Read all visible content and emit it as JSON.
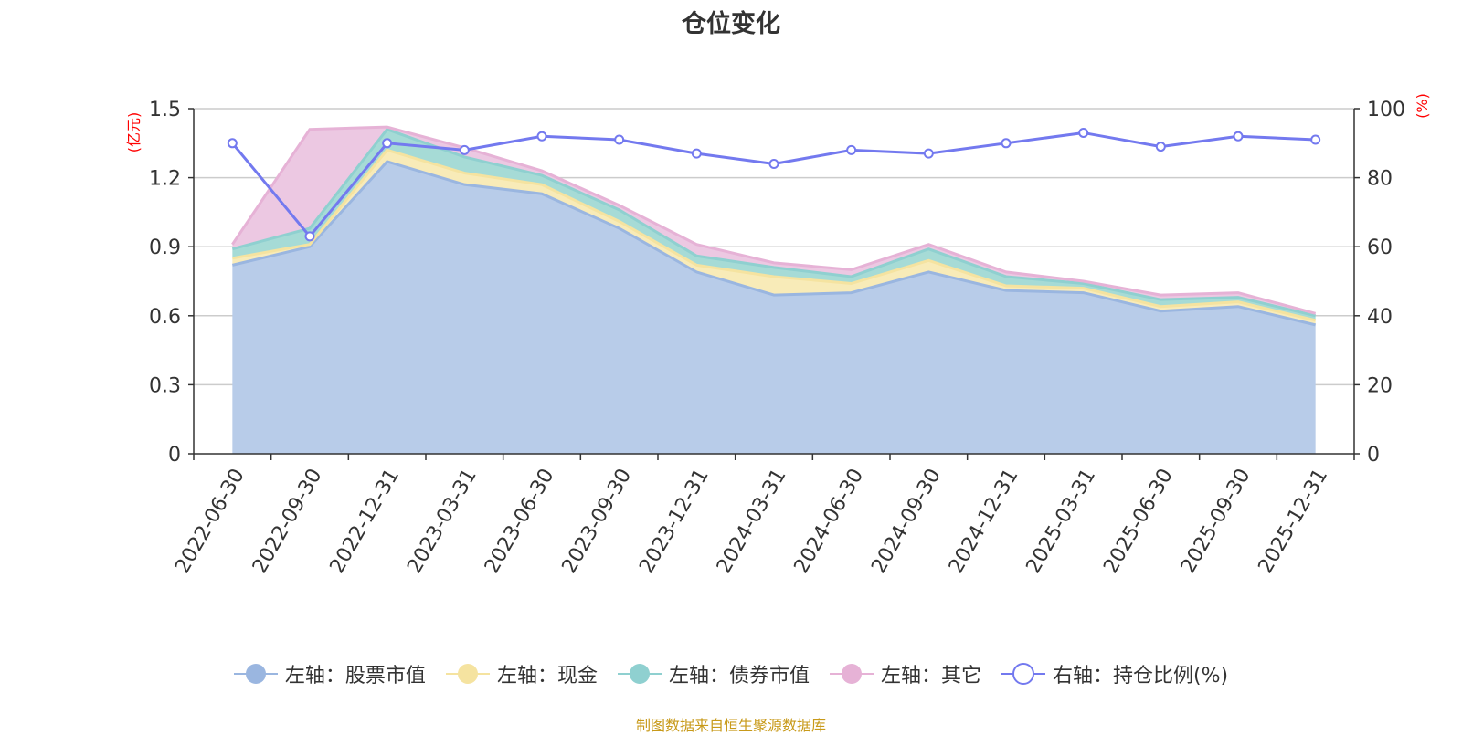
{
  "chart_data": {
    "type": "area",
    "title": "仓位变化",
    "categories": [
      "2022-06-30",
      "2022-09-30",
      "2022-12-31",
      "2023-03-31",
      "2023-06-30",
      "2023-09-30",
      "2023-12-31",
      "2024-03-31",
      "2024-06-30",
      "2024-09-30",
      "2024-12-31",
      "2025-03-31",
      "2025-06-30",
      "2025-09-30",
      "2025-12-31"
    ],
    "left_axis": {
      "unit": "(亿元)",
      "ylim": [
        0,
        1.5
      ],
      "ticks": [
        "0",
        "0.3",
        "0.6",
        "0.9",
        "1.2",
        "1.5"
      ]
    },
    "right_axis": {
      "unit": "(%)",
      "ylim": [
        0,
        100
      ],
      "ticks": [
        "0",
        "20",
        "40",
        "60",
        "80",
        "100"
      ]
    },
    "stacked": true,
    "series": [
      {
        "name": "左轴：股票市值",
        "axis": "left",
        "color": "#9ab6e0",
        "fill": "#b8cce9",
        "values": [
          0.82,
          0.9,
          1.27,
          1.17,
          1.13,
          0.98,
          0.79,
          0.69,
          0.7,
          0.79,
          0.71,
          0.7,
          0.62,
          0.64,
          0.56
        ]
      },
      {
        "name": "左轴：现金",
        "axis": "left",
        "color": "#f5e3a0",
        "fill": "#f8ebb8",
        "values": [
          0.03,
          0.01,
          0.05,
          0.05,
          0.04,
          0.03,
          0.03,
          0.08,
          0.04,
          0.05,
          0.02,
          0.02,
          0.02,
          0.02,
          0.02
        ]
      },
      {
        "name": "左轴：债券市值",
        "axis": "left",
        "color": "#8fd0d0",
        "fill": "#a6dbd6",
        "values": [
          0.04,
          0.07,
          0.09,
          0.07,
          0.04,
          0.05,
          0.04,
          0.04,
          0.03,
          0.05,
          0.04,
          0.02,
          0.03,
          0.02,
          0.02
        ]
      },
      {
        "name": "左轴：其它",
        "axis": "left",
        "color": "#e6b2d6",
        "fill": "#ecc8e2",
        "values": [
          0.02,
          0.43,
          0.01,
          0.04,
          0.02,
          0.02,
          0.05,
          0.02,
          0.03,
          0.02,
          0.02,
          0.01,
          0.02,
          0.02,
          0.01
        ]
      },
      {
        "name": "右轴：持仓比例(%)",
        "axis": "right",
        "type": "line",
        "color": "#7379ef",
        "values": [
          90,
          63,
          90,
          88,
          92,
          91,
          87,
          84,
          88,
          87,
          90,
          93,
          89,
          92,
          91
        ]
      }
    ],
    "legend_position": "bottom-center",
    "source": "制图数据来自恒生聚源数据库"
  }
}
